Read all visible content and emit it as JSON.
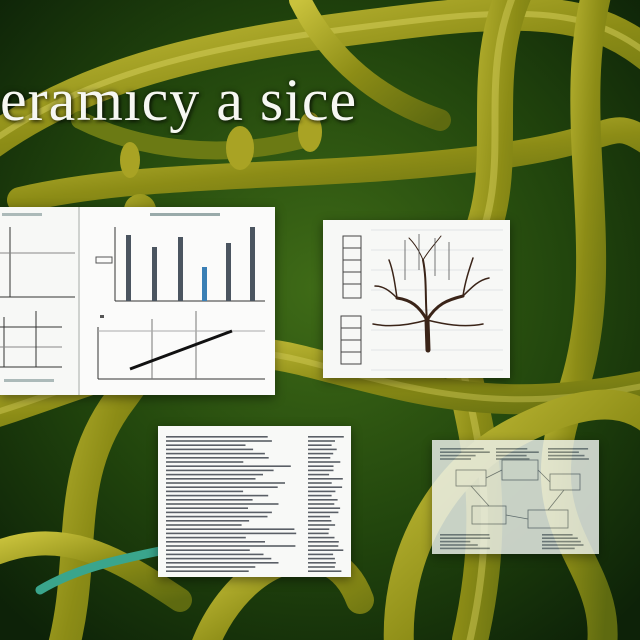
{
  "headline": {
    "text": "eramıcy a sice"
  },
  "colors": {
    "background_dark": "#0f2a0a",
    "background_mid": "#2e5a12",
    "vine": "#9a9a1c",
    "vine_highlight": "#d8d25a",
    "panel_paper": "#f7f8f6",
    "ink": "#222222",
    "teal_strand": "#3aa58c"
  },
  "panels": [
    {
      "name": "chart-collage-panel",
      "contents": [
        "bar-chart-figure",
        "line-chart-figure",
        "axis-plot-figure"
      ]
    },
    {
      "name": "tree-illustration-panel",
      "contents": [
        "branching-tree-sketch",
        "table-strips"
      ]
    },
    {
      "name": "text-document-panel",
      "contents": [
        "dense-text-columns"
      ]
    },
    {
      "name": "faded-diagram-panel",
      "contents": [
        "block-diagram"
      ]
    }
  ]
}
